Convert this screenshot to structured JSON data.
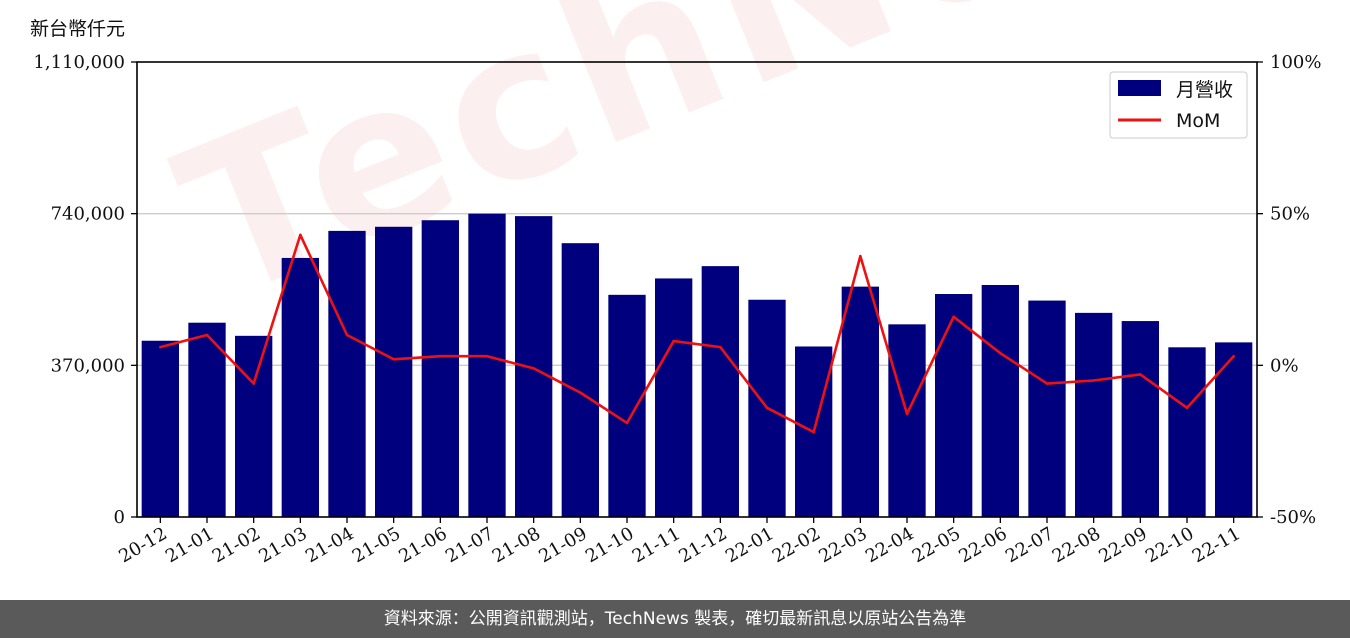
{
  "unit_label": "新台幣仟元",
  "footer_text": "資料來源：公開資訊觀測站，TechNews 製表，確切最新訊息以原站公告為準",
  "watermark_text": "TechNews",
  "colors": {
    "bar": "#00007f",
    "line": "#ee1111",
    "grid": "#cccccc",
    "footer_bg": "#5a5a5a"
  },
  "chart_data": {
    "type": "bar",
    "categories": [
      "20-12",
      "21-01",
      "21-02",
      "21-03",
      "21-04",
      "21-05",
      "21-06",
      "21-07",
      "21-08",
      "21-09",
      "21-10",
      "21-11",
      "21-12",
      "22-01",
      "22-02",
      "22-03",
      "22-04",
      "22-05",
      "22-06",
      "22-07",
      "22-08",
      "22-09",
      "22-10",
      "22-11"
    ],
    "series": [
      {
        "name": "月營收",
        "axis": "left",
        "type": "bar",
        "values": [
          430000,
          474000,
          442000,
          632000,
          698000,
          708000,
          724000,
          740000,
          734000,
          668000,
          542000,
          582000,
          612000,
          530000,
          416000,
          562000,
          470000,
          544000,
          566000,
          528000,
          498000,
          478000,
          414000,
          426000
        ]
      },
      {
        "name": "MoM",
        "axis": "right",
        "type": "line",
        "values": [
          6,
          10,
          -6,
          43,
          10,
          2,
          3,
          3,
          -1,
          -9,
          -19,
          8,
          6,
          -14,
          -22,
          36,
          -16,
          16,
          4,
          -6,
          -5,
          -3,
          -14,
          3
        ]
      }
    ],
    "y_left": {
      "ylim": [
        0,
        1110000
      ],
      "ticks": [
        0,
        370000,
        740000,
        1110000
      ],
      "tick_labels": [
        "0",
        "370,000",
        "740,000",
        "1,110,000"
      ]
    },
    "y_right": {
      "ylim": [
        -50,
        100
      ],
      "ticks": [
        -50,
        0,
        50,
        100
      ],
      "tick_labels": [
        "-50%",
        "0%",
        "50%",
        "100%"
      ]
    },
    "grid": "horizontal",
    "legend_position": "top-right"
  }
}
